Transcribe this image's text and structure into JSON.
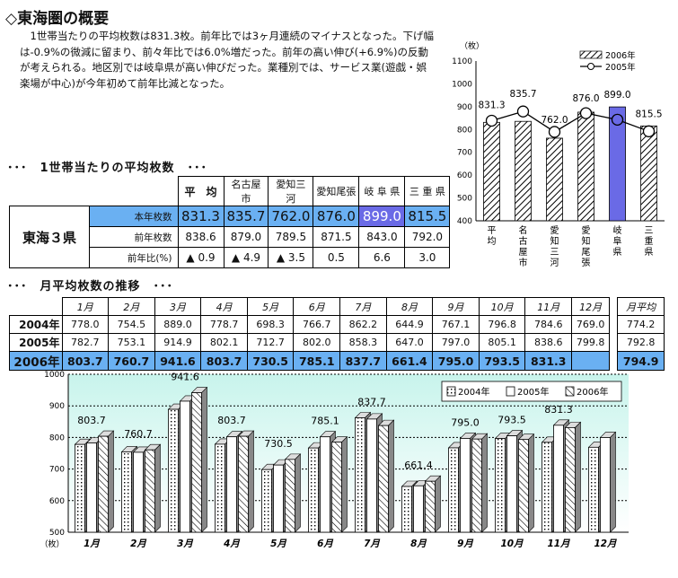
{
  "title": "◇東海圏の概要",
  "paragraph": "　1世帯当たりの平均枚数は831.3枚。前年比では3ヶ月連続のマイナスとなった。下げ幅は-0.9%の微減に留まり、前々年比では6.0%増だった。前年の高い伸び(+6.9%)の反動が考えられる。地区別では岐阜県が高い伸びだった。業種別では、サービス業(遊戯・娯楽場が中心)が今年初めて前年比減となった。",
  "section1_title": "･･･　1世帯当たりの平均枚数　･･･",
  "section2_title": "･･･　月平均枚数の推移　･･･",
  "table1": {
    "region": "東海３県",
    "headers": [
      "平　均",
      "名古屋市",
      "愛知三河",
      "愛知尾張",
      "岐 阜 県",
      "三 重 県"
    ],
    "rows": [
      {
        "label": "本年枚数",
        "values": [
          "831.3",
          "835.7",
          "762.0",
          "876.0",
          "899.0",
          "815.5"
        ]
      },
      {
        "label": "前年枚数",
        "values": [
          "838.6",
          "879.0",
          "789.5",
          "871.5",
          "843.0",
          "792.0"
        ]
      },
      {
        "label": "前年比(%)",
        "values": [
          "▲ 0.9",
          "▲ 4.9",
          "▲ 3.5",
          "0.5",
          "6.6",
          "3.0"
        ]
      }
    ]
  },
  "table2": {
    "months": [
      "1月",
      "2月",
      "3月",
      "4月",
      "5月",
      "6月",
      "7月",
      "8月",
      "9月",
      "10月",
      "11月",
      "12月"
    ],
    "avg_header": "月平均",
    "rows": [
      {
        "year": "2004年",
        "values": [
          "778.0",
          "754.5",
          "889.0",
          "778.7",
          "698.3",
          "766.7",
          "862.2",
          "644.9",
          "767.1",
          "796.8",
          "784.6",
          "769.0"
        ],
        "avg": "774.2"
      },
      {
        "year": "2005年",
        "values": [
          "782.7",
          "753.1",
          "914.9",
          "802.1",
          "712.7",
          "802.0",
          "858.3",
          "647.0",
          "797.0",
          "805.1",
          "838.6",
          "799.8"
        ],
        "avg": "792.8"
      },
      {
        "year": "2006年",
        "values": [
          "803.7",
          "760.7",
          "941.6",
          "803.7",
          "730.5",
          "785.1",
          "837.7",
          "661.4",
          "795.0",
          "793.5",
          "831.3",
          ""
        ],
        "avg": "794.9"
      }
    ]
  },
  "chart_data": [
    {
      "type": "bar",
      "ylabel": "（枚）",
      "ylim": [
        400,
        1100
      ],
      "yticks": [
        400,
        500,
        600,
        700,
        800,
        900,
        1000,
        1100
      ],
      "categories": [
        "平均",
        "名古屋市",
        "愛知三河",
        "愛知尾張",
        "岐阜県",
        "三重県"
      ],
      "legend_position": "top-right",
      "grid": false,
      "series": [
        {
          "name": "2006年",
          "type": "bar",
          "values": [
            831.3,
            835.7,
            762.0,
            876.0,
            899.0,
            815.5
          ]
        },
        {
          "name": "2005年",
          "type": "line",
          "values": [
            838.6,
            879.0,
            789.5,
            871.5,
            843.0,
            792.0
          ]
        }
      ],
      "data_labels": [
        "831.3",
        "835.7",
        "762.0",
        "876.0",
        "899.0",
        "815.5"
      ],
      "colors": {
        "bar": "#ffffff",
        "bar_highlight": "#6a6ae6",
        "line": "#000000"
      }
    },
    {
      "type": "bar",
      "ylabel": "（枚）",
      "ylim": [
        500,
        1000
      ],
      "yticks": [
        500,
        600,
        700,
        800,
        900,
        1000
      ],
      "categories": [
        "1月",
        "2月",
        "3月",
        "4月",
        "5月",
        "6月",
        "7月",
        "8月",
        "9月",
        "10月",
        "11月",
        "12月"
      ],
      "legend_position": "top-right",
      "grid": true,
      "series": [
        {
          "name": "2004年",
          "values": [
            778.0,
            754.5,
            889.0,
            778.7,
            698.3,
            766.7,
            862.2,
            644.9,
            767.1,
            796.8,
            784.6,
            769.0
          ]
        },
        {
          "name": "2005年",
          "values": [
            782.7,
            753.1,
            914.9,
            802.1,
            712.7,
            802.0,
            858.3,
            647.0,
            797.0,
            805.1,
            838.6,
            799.8
          ]
        },
        {
          "name": "2006年",
          "values": [
            803.7,
            760.7,
            941.6,
            803.7,
            730.5,
            785.1,
            837.7,
            661.4,
            795.0,
            793.5,
            831.3,
            null
          ]
        }
      ],
      "data_labels": [
        "803.7",
        "760.7",
        "941.6",
        "803.7",
        "730.5",
        "785.1",
        "837.7",
        "661.4",
        "795.0",
        "793.5",
        "831.3"
      ],
      "colors": {
        "background_top": "#c8f4ec",
        "background_bottom": "#ffffff",
        "bar": "#ffffff"
      }
    }
  ]
}
